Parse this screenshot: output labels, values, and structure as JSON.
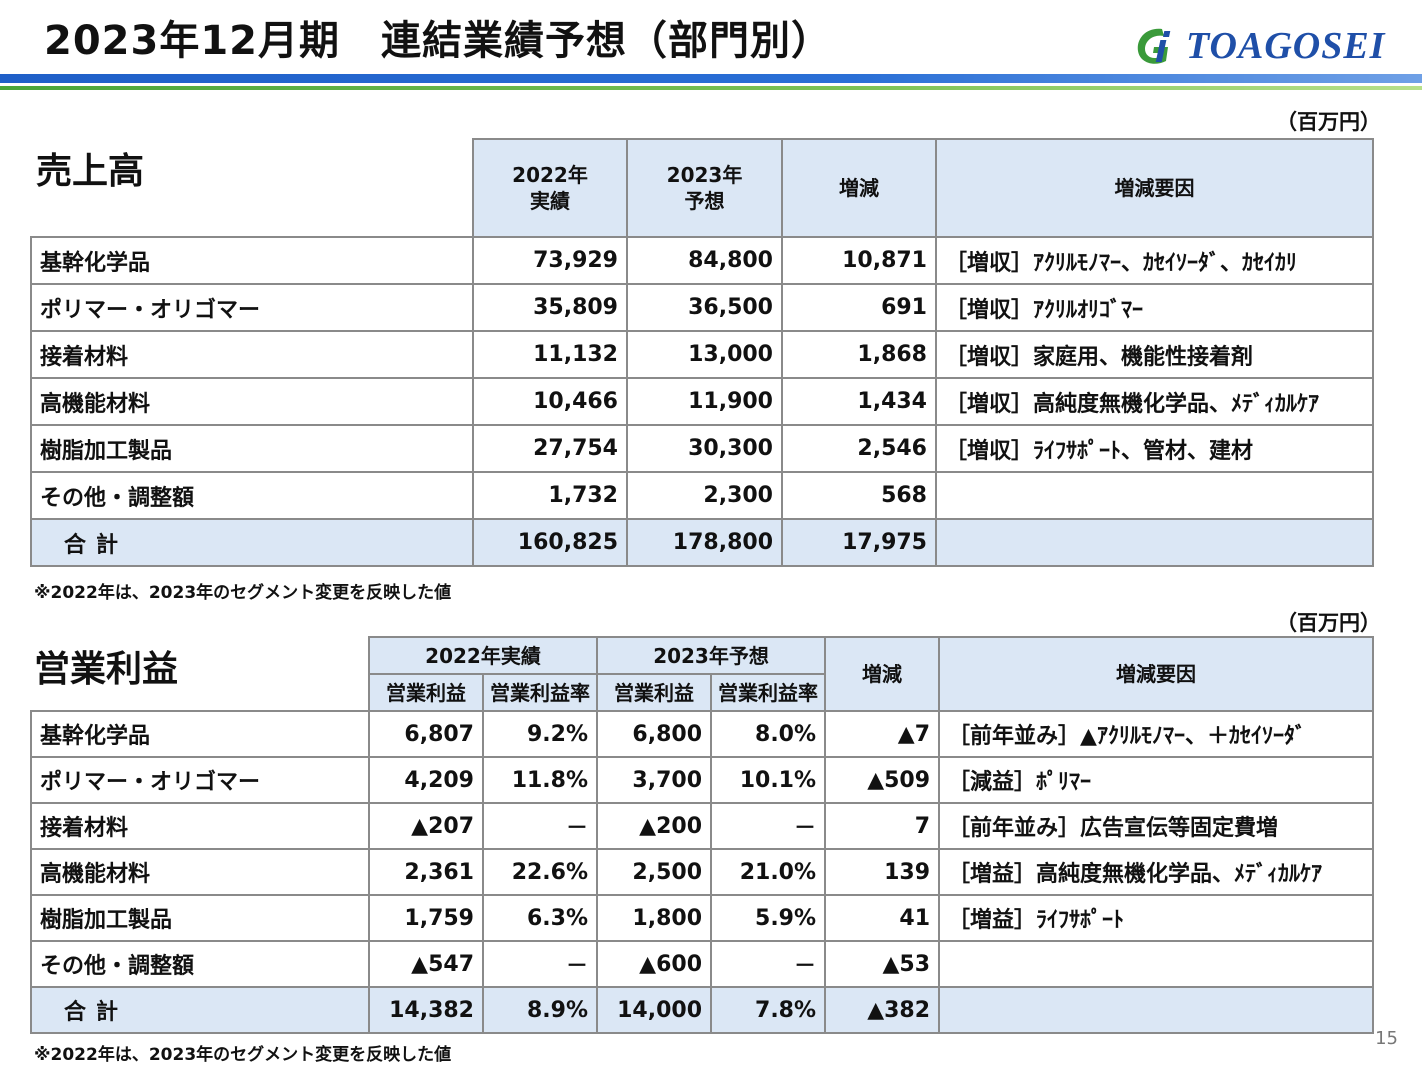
{
  "header": {
    "title": "2023年12月期　連結業績予想（部門別）",
    "logo_text": "TOAGOSEI"
  },
  "colors": {
    "header_blue": "#1f5fc8",
    "header_green": "#4aa53a",
    "table_header_bg": "#dbe7f5",
    "logo_blue": "#1f4fa8"
  },
  "sales": {
    "unit": "（百万円）",
    "title": "売上高",
    "headers": {
      "y2022_line1": "2022年",
      "y2022_line2": "実績",
      "y2023_line1": "2023年",
      "y2023_line2": "予想",
      "change": "増減",
      "reason": "増減要因"
    },
    "rows": [
      {
        "label": "基幹化学品",
        "y2022": "73,929",
        "y2023": "84,800",
        "change": "10,871",
        "reason": "［増収］ｱｸﾘﾙﾓﾉﾏｰ、ｶｾｲｿｰﾀﾞ、ｶｾｲｶﾘ"
      },
      {
        "label": "ポリマー・オリゴマー",
        "y2022": "35,809",
        "y2023": "36,500",
        "change": "691",
        "reason": "［増収］ｱｸﾘﾙｵﾘｺﾞﾏｰ"
      },
      {
        "label": "接着材料",
        "y2022": "11,132",
        "y2023": "13,000",
        "change": "1,868",
        "reason": "［増収］家庭用、機能性接着剤"
      },
      {
        "label": "高機能材料",
        "y2022": "10,466",
        "y2023": "11,900",
        "change": "1,434",
        "reason": "［増収］高純度無機化学品、ﾒﾃﾞｨｶﾙｹｱ"
      },
      {
        "label": "樹脂加工製品",
        "y2022": "27,754",
        "y2023": "30,300",
        "change": "2,546",
        "reason": "［増収］ﾗｲﾌｻﾎﾟｰﾄ、管材、建材"
      },
      {
        "label": "その他・調整額",
        "y2022": "1,732",
        "y2023": "2,300",
        "change": "568",
        "reason": ""
      }
    ],
    "total": {
      "label": "合計",
      "y2022": "160,825",
      "y2023": "178,800",
      "change": "17,975",
      "reason": ""
    },
    "note": "※2022年は、2023年のセグメント変更を反映した値"
  },
  "profit": {
    "unit": "（百万円）",
    "title": "営業利益",
    "headers": {
      "y2022": "2022年実績",
      "y2023": "2023年予想",
      "op": "営業利益",
      "margin": "営業利益率",
      "change": "増減",
      "reason": "増減要因"
    },
    "rows": [
      {
        "label": "基幹化学品",
        "op2022": "6,807",
        "m2022": "9.2%",
        "op2023": "6,800",
        "m2023": "8.0%",
        "change": "▲7",
        "reason": "［前年並み］▲ｱｸﾘﾙﾓﾉﾏｰ、＋ｶｾｲｿｰﾀﾞ"
      },
      {
        "label": "ポリマー・オリゴマー",
        "op2022": "4,209",
        "m2022": "11.8%",
        "op2023": "3,700",
        "m2023": "10.1%",
        "change": "▲509",
        "reason": "［減益］ﾎﾟﾘﾏｰ"
      },
      {
        "label": "接着材料",
        "op2022": "▲207",
        "m2022": "－",
        "op2023": "▲200",
        "m2023": "－",
        "change": "7",
        "reason": "［前年並み］広告宣伝等固定費増"
      },
      {
        "label": "高機能材料",
        "op2022": "2,361",
        "m2022": "22.6%",
        "op2023": "2,500",
        "m2023": "21.0%",
        "change": "139",
        "reason": "［増益］高純度無機化学品、ﾒﾃﾞｨｶﾙｹｱ"
      },
      {
        "label": "樹脂加工製品",
        "op2022": "1,759",
        "m2022": "6.3%",
        "op2023": "1,800",
        "m2023": "5.9%",
        "change": "41",
        "reason": "［増益］ﾗｲﾌｻﾎﾟｰﾄ"
      },
      {
        "label": "その他・調整額",
        "op2022": "▲547",
        "m2022": "－",
        "op2023": "▲600",
        "m2023": "－",
        "change": "▲53",
        "reason": ""
      }
    ],
    "total": {
      "label": "合計",
      "op2022": "14,382",
      "m2022": "8.9%",
      "op2023": "14,000",
      "m2023": "7.8%",
      "change": "▲382",
      "reason": ""
    },
    "note": "※2022年は、2023年のセグメント変更を反映した値"
  },
  "page_number": "15"
}
